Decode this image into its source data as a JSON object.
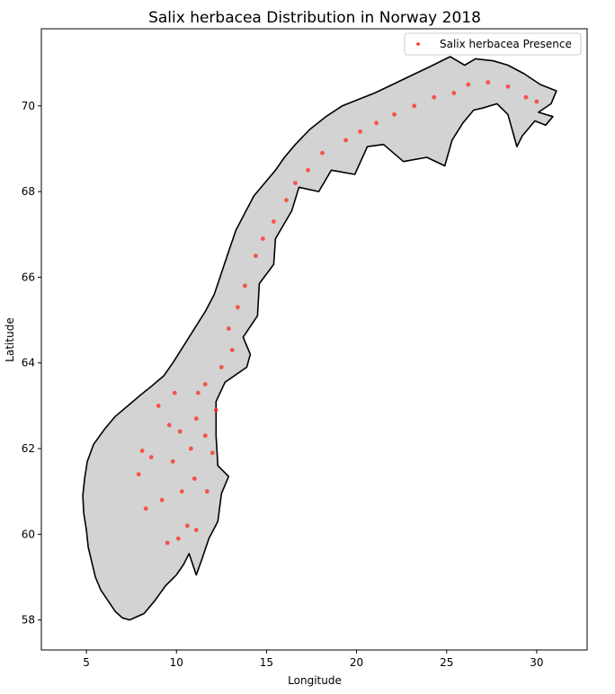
{
  "chart_data": {
    "type": "scatter",
    "title": "Salix herbacea Distribution in Norway 2018",
    "xlabel": "Longitude",
    "ylabel": "Latitude",
    "xlim": [
      2.5,
      32.8
    ],
    "ylim": [
      57.3,
      71.8
    ],
    "xticks": [
      5,
      10,
      15,
      20,
      25,
      30
    ],
    "yticks": [
      58,
      60,
      62,
      64,
      66,
      68,
      70
    ],
    "grid": false,
    "legend_position": "top-right",
    "series": [
      {
        "name": "Salix herbacea Presence",
        "color": "#ff2a1a",
        "marker": "dot"
      }
    ],
    "base_map": {
      "fill": "#d3d3d3",
      "edge": "#000000"
    },
    "outline": [
      [
        7.4,
        58.0
      ],
      [
        7.0,
        58.05
      ],
      [
        6.6,
        58.2
      ],
      [
        6.2,
        58.45
      ],
      [
        5.8,
        58.7
      ],
      [
        5.5,
        59.0
      ],
      [
        5.3,
        59.35
      ],
      [
        5.1,
        59.7
      ],
      [
        5.0,
        60.1
      ],
      [
        4.85,
        60.5
      ],
      [
        4.8,
        60.9
      ],
      [
        4.9,
        61.3
      ],
      [
        5.05,
        61.7
      ],
      [
        5.4,
        62.1
      ],
      [
        6.0,
        62.45
      ],
      [
        6.6,
        62.75
      ],
      [
        7.3,
        63.0
      ],
      [
        8.0,
        63.25
      ],
      [
        8.6,
        63.45
      ],
      [
        9.3,
        63.7
      ],
      [
        9.8,
        64.0
      ],
      [
        10.4,
        64.4
      ],
      [
        11.0,
        64.8
      ],
      [
        11.6,
        65.2
      ],
      [
        12.1,
        65.6
      ],
      [
        12.5,
        66.1
      ],
      [
        12.9,
        66.6
      ],
      [
        13.3,
        67.1
      ],
      [
        13.8,
        67.5
      ],
      [
        14.3,
        67.9
      ],
      [
        14.9,
        68.2
      ],
      [
        15.5,
        68.5
      ],
      [
        16.0,
        68.8
      ],
      [
        16.6,
        69.1
      ],
      [
        17.4,
        69.45
      ],
      [
        18.3,
        69.75
      ],
      [
        19.2,
        70.0
      ],
      [
        20.1,
        70.15
      ],
      [
        21.0,
        70.3
      ],
      [
        22.0,
        70.5
      ],
      [
        23.0,
        70.7
      ],
      [
        24.0,
        70.9
      ],
      [
        25.2,
        71.15
      ],
      [
        26.0,
        70.95
      ],
      [
        26.6,
        71.1
      ],
      [
        27.6,
        71.05
      ],
      [
        28.4,
        70.95
      ],
      [
        29.3,
        70.75
      ],
      [
        30.2,
        70.5
      ],
      [
        31.1,
        70.35
      ],
      [
        30.8,
        70.05
      ],
      [
        30.1,
        69.85
      ],
      [
        30.9,
        69.75
      ],
      [
        30.5,
        69.55
      ],
      [
        29.9,
        69.65
      ],
      [
        29.2,
        69.3
      ],
      [
        28.9,
        69.05
      ],
      [
        28.4,
        69.8
      ],
      [
        27.8,
        70.05
      ],
      [
        27.0,
        69.95
      ],
      [
        26.5,
        69.9
      ],
      [
        25.9,
        69.6
      ],
      [
        25.3,
        69.2
      ],
      [
        24.9,
        68.6
      ],
      [
        23.9,
        68.8
      ],
      [
        22.6,
        68.7
      ],
      [
        21.5,
        69.1
      ],
      [
        20.6,
        69.05
      ],
      [
        19.9,
        68.4
      ],
      [
        18.6,
        68.5
      ],
      [
        17.9,
        68.0
      ],
      [
        16.8,
        68.1
      ],
      [
        16.4,
        67.55
      ],
      [
        15.5,
        66.9
      ],
      [
        15.4,
        66.3
      ],
      [
        14.6,
        65.85
      ],
      [
        14.5,
        65.1
      ],
      [
        13.7,
        64.6
      ],
      [
        14.1,
        64.2
      ],
      [
        13.9,
        63.9
      ],
      [
        12.7,
        63.55
      ],
      [
        12.2,
        63.1
      ],
      [
        12.2,
        62.3
      ],
      [
        12.3,
        61.6
      ],
      [
        12.9,
        61.35
      ],
      [
        12.5,
        60.95
      ],
      [
        12.3,
        60.3
      ],
      [
        11.8,
        59.9
      ],
      [
        11.4,
        59.4
      ],
      [
        11.1,
        59.05
      ],
      [
        10.7,
        59.55
      ],
      [
        10.4,
        59.3
      ],
      [
        10.0,
        59.05
      ],
      [
        9.4,
        58.8
      ],
      [
        8.8,
        58.45
      ],
      [
        8.2,
        58.15
      ],
      [
        7.4,
        58.0
      ]
    ],
    "points": [
      [
        9.5,
        59.8
      ],
      [
        10.1,
        59.9
      ],
      [
        11.1,
        60.1
      ],
      [
        10.6,
        60.2
      ],
      [
        8.3,
        60.6
      ],
      [
        9.2,
        60.8
      ],
      [
        10.3,
        61.0
      ],
      [
        11.0,
        61.3
      ],
      [
        9.8,
        61.7
      ],
      [
        8.6,
        61.8
      ],
      [
        10.8,
        62.0
      ],
      [
        11.6,
        62.3
      ],
      [
        7.9,
        61.4
      ],
      [
        8.1,
        61.95
      ],
      [
        10.2,
        62.4
      ],
      [
        9.6,
        62.55
      ],
      [
        11.1,
        62.7
      ],
      [
        12.0,
        61.9
      ],
      [
        11.7,
        61.0
      ],
      [
        9.0,
        63.0
      ],
      [
        9.9,
        63.3
      ],
      [
        11.2,
        63.3
      ],
      [
        12.2,
        62.9
      ],
      [
        11.6,
        63.5
      ],
      [
        12.5,
        63.9
      ],
      [
        13.1,
        64.3
      ],
      [
        12.9,
        64.8
      ],
      [
        13.4,
        65.3
      ],
      [
        13.8,
        65.8
      ],
      [
        14.4,
        66.5
      ],
      [
        14.8,
        66.9
      ],
      [
        15.4,
        67.3
      ],
      [
        16.1,
        67.8
      ],
      [
        16.6,
        68.2
      ],
      [
        17.3,
        68.5
      ],
      [
        18.1,
        68.9
      ],
      [
        19.4,
        69.2
      ],
      [
        20.2,
        69.4
      ],
      [
        21.1,
        69.6
      ],
      [
        22.1,
        69.8
      ],
      [
        23.2,
        70.0
      ],
      [
        24.3,
        70.2
      ],
      [
        25.4,
        70.3
      ],
      [
        26.2,
        70.5
      ],
      [
        27.3,
        70.55
      ],
      [
        28.4,
        70.45
      ],
      [
        29.4,
        70.2
      ],
      [
        30.0,
        70.1
      ]
    ]
  }
}
